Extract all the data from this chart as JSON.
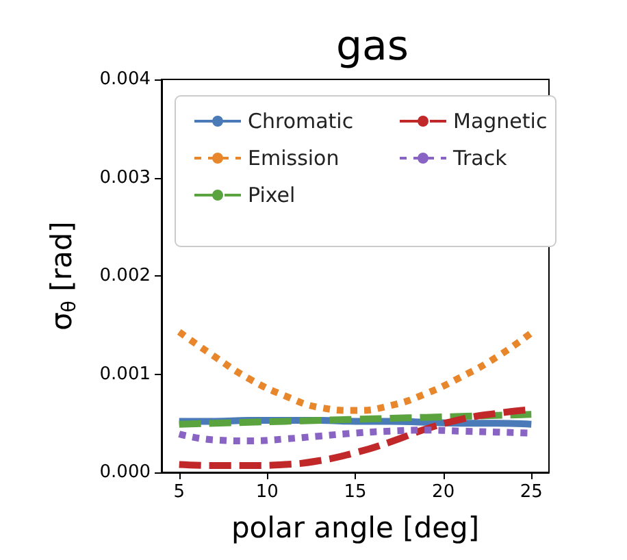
{
  "chart_data": {
    "type": "line",
    "title": "gas",
    "xlabel": "polar angle [deg]",
    "ylabel": "σ$_{θ}$ [rad]",
    "x": [
      5,
      7,
      9,
      11,
      13,
      15,
      17,
      19,
      21,
      23,
      25
    ],
    "series": [
      {
        "name": "Chromatic",
        "color": "#4a7ab8",
        "line_style": "solid",
        "values": [
          0.00052,
          0.00052,
          0.00053,
          0.00053,
          0.00053,
          0.00052,
          0.00052,
          0.00051,
          0.0005,
          0.0005,
          0.00049
        ]
      },
      {
        "name": "Emission",
        "color": "#e8862c",
        "line_style": "dotted",
        "values": [
          0.00143,
          0.00118,
          0.00095,
          0.00078,
          0.00066,
          0.00063,
          0.00068,
          0.0008,
          0.00097,
          0.00117,
          0.00142
        ]
      },
      {
        "name": "Pixel",
        "color": "#5aa33f",
        "line_style": "dashed",
        "values": [
          0.00049,
          0.0005,
          0.00051,
          0.00052,
          0.00053,
          0.00054,
          0.00055,
          0.00056,
          0.00057,
          0.00058,
          0.00059
        ]
      },
      {
        "name": "Magnetic",
        "color": "#c0282a",
        "line_style": "dashed",
        "values": [
          8e-05,
          7e-05,
          7e-05,
          8e-05,
          0.00012,
          0.0002,
          0.00031,
          0.00044,
          0.00054,
          0.0006,
          0.00064
        ]
      },
      {
        "name": "Track",
        "color": "#8a64c4",
        "line_style": "dotted",
        "values": [
          0.00039,
          0.00033,
          0.00032,
          0.00034,
          0.00037,
          0.0004,
          0.00042,
          0.00043,
          0.00042,
          0.00041,
          0.0004
        ]
      }
    ],
    "xlim": [
      4,
      26
    ],
    "xticks": [
      5,
      10,
      15,
      20,
      25
    ],
    "ylim": [
      0,
      0.004
    ],
    "yticks": [
      {
        "value": 0,
        "label": "0.000"
      },
      {
        "value": 0.001,
        "label": "0.001"
      },
      {
        "value": 0.002,
        "label": "0.002"
      },
      {
        "value": 0.003,
        "label": "0.003"
      },
      {
        "value": 0.004,
        "label": "0.004"
      }
    ],
    "grid": false,
    "legend": "top",
    "marker": "none"
  }
}
